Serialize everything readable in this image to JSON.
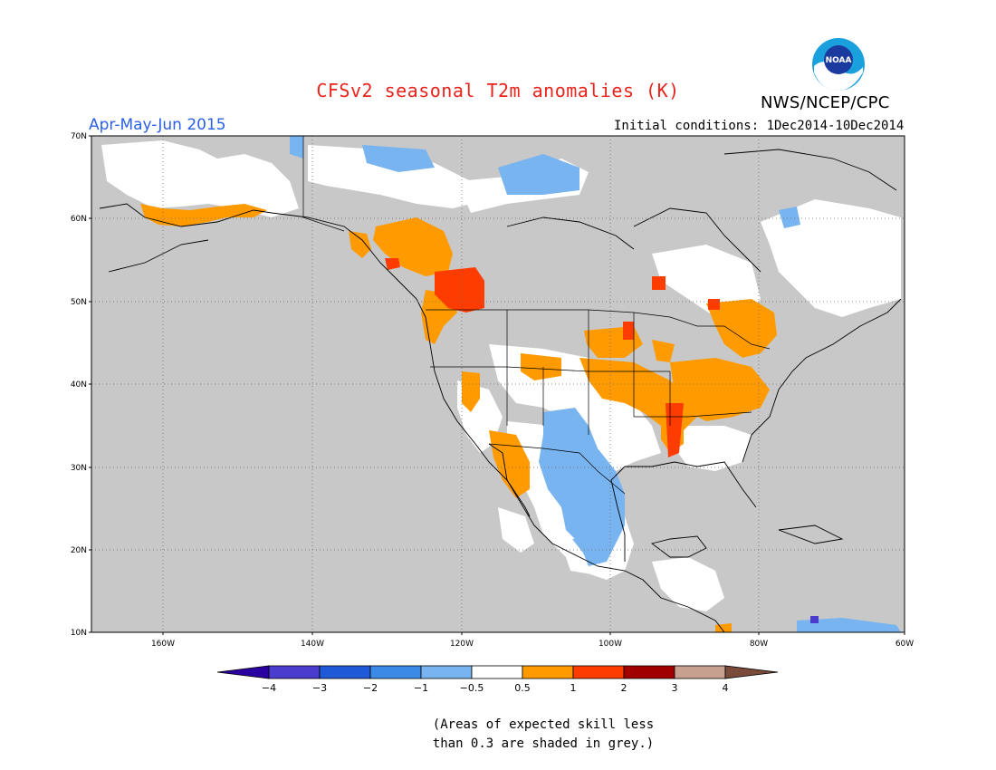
{
  "title": "CFSv2 seasonal T2m anomalies (K)",
  "agency": "NWS/NCEP/CPC",
  "season": "Apr-May-Jun 2015",
  "initial_conditions": "Initial conditions: 1Dec2014-10Dec2014",
  "footnote_line1": "(Areas of expected skill less",
  "footnote_line2": "than 0.3 are shaded in grey.)",
  "logo_text": "NOAA",
  "lat_labels": [
    "70N",
    "60N",
    "50N",
    "40N",
    "30N",
    "20N",
    "10N"
  ],
  "lon_labels": [
    "160W",
    "140W",
    "120W",
    "100W",
    "80W",
    "60W"
  ],
  "colorbar": {
    "tick_labels": [
      "−4",
      "−3",
      "−2",
      "−1",
      "−0.5",
      "0.5",
      "1",
      "2",
      "3",
      "4"
    ],
    "colors": [
      "#2a00a0",
      "#4a3ccc",
      "#1e5ad8",
      "#3b8ae6",
      "#78b4f0",
      "#ffffff",
      "#ff9a00",
      "#ff3c00",
      "#a00000",
      "#c8a090",
      "#7a4a3a"
    ]
  },
  "colors": {
    "skill_grey": "#c8c8c8",
    "warm_05_1": "#ff9a00",
    "warm_1_2": "#ff3c00",
    "cool_05_1": "#78b4f0",
    "title_red": "#e8241c",
    "season_blue": "#2a5fe6"
  }
}
